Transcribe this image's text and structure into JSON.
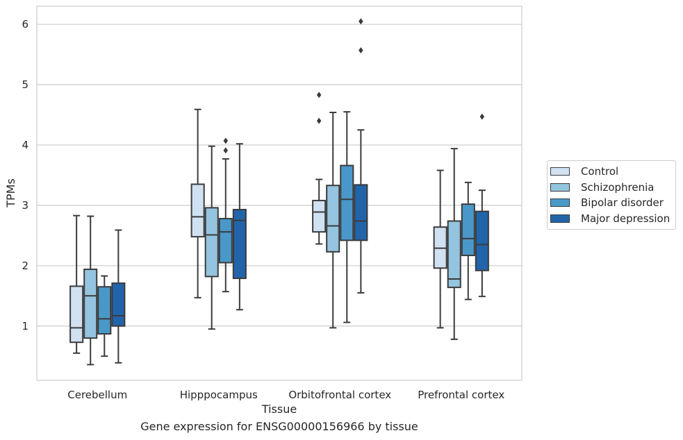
{
  "caption": "Gene expression for ENSG00000156966 by tissue",
  "chart_data": {
    "type": "box",
    "xlabel": "Tissue",
    "ylabel": "TPMs",
    "ylim": [
      0.1,
      6.3
    ],
    "yticks": [
      1,
      2,
      3,
      4,
      5,
      6
    ],
    "grid": "horizontal",
    "legend_position": "right",
    "categories": [
      "Cerebellum",
      "Hipppocampus",
      "Orbitofrontal cortex",
      "Prefrontal cortex"
    ],
    "series": [
      {
        "name": "Control",
        "color": "#d0e1f2",
        "boxes": [
          {
            "whislo": 0.55,
            "q1": 0.73,
            "med": 0.97,
            "q3": 1.66,
            "whishi": 2.83,
            "fliers": []
          },
          {
            "whislo": 1.47,
            "q1": 2.48,
            "med": 2.81,
            "q3": 3.35,
            "whishi": 4.59,
            "fliers": []
          },
          {
            "whislo": 2.36,
            "q1": 2.56,
            "med": 2.89,
            "q3": 3.08,
            "whishi": 3.43,
            "fliers": [
              4.4,
              4.83
            ]
          },
          {
            "whislo": 0.97,
            "q1": 1.96,
            "med": 2.29,
            "q3": 2.64,
            "whishi": 3.58,
            "fliers": []
          }
        ]
      },
      {
        "name": "Schizophrenia",
        "color": "#94c4df",
        "boxes": [
          {
            "whislo": 0.36,
            "q1": 0.8,
            "med": 1.5,
            "q3": 1.94,
            "whishi": 2.82,
            "fliers": []
          },
          {
            "whislo": 0.95,
            "q1": 1.82,
            "med": 2.51,
            "q3": 2.96,
            "whishi": 3.98,
            "fliers": []
          },
          {
            "whislo": 0.97,
            "q1": 2.23,
            "med": 2.66,
            "q3": 3.33,
            "whishi": 4.54,
            "fliers": []
          },
          {
            "whislo": 0.78,
            "q1": 1.64,
            "med": 1.78,
            "q3": 2.74,
            "whishi": 3.94,
            "fliers": []
          }
        ]
      },
      {
        "name": "Bipolar disorder",
        "color": "#4a98c9",
        "boxes": [
          {
            "whislo": 0.5,
            "q1": 0.87,
            "med": 1.12,
            "q3": 1.65,
            "whishi": 1.83,
            "fliers": []
          },
          {
            "whislo": 1.57,
            "q1": 2.05,
            "med": 2.56,
            "q3": 2.78,
            "whishi": 3.77,
            "fliers": [
              3.91,
              4.07
            ]
          },
          {
            "whislo": 1.06,
            "q1": 2.42,
            "med": 3.1,
            "q3": 3.66,
            "whishi": 4.55,
            "fliers": []
          },
          {
            "whislo": 1.44,
            "q1": 2.17,
            "med": 2.45,
            "q3": 3.02,
            "whishi": 3.38,
            "fliers": []
          }
        ]
      },
      {
        "name": "Major depression",
        "color": "#2264aa",
        "boxes": [
          {
            "whislo": 0.39,
            "q1": 1.0,
            "med": 1.17,
            "q3": 1.71,
            "whishi": 2.59,
            "fliers": []
          },
          {
            "whislo": 1.27,
            "q1": 1.79,
            "med": 2.75,
            "q3": 2.93,
            "whishi": 4.02,
            "fliers": []
          },
          {
            "whislo": 1.55,
            "q1": 2.42,
            "med": 2.74,
            "q3": 3.34,
            "whishi": 4.25,
            "fliers": [
              5.57,
              6.05
            ]
          },
          {
            "whislo": 1.49,
            "q1": 1.92,
            "med": 2.35,
            "q3": 2.9,
            "whishi": 3.25,
            "fliers": [
              4.47
            ]
          }
        ]
      }
    ]
  }
}
